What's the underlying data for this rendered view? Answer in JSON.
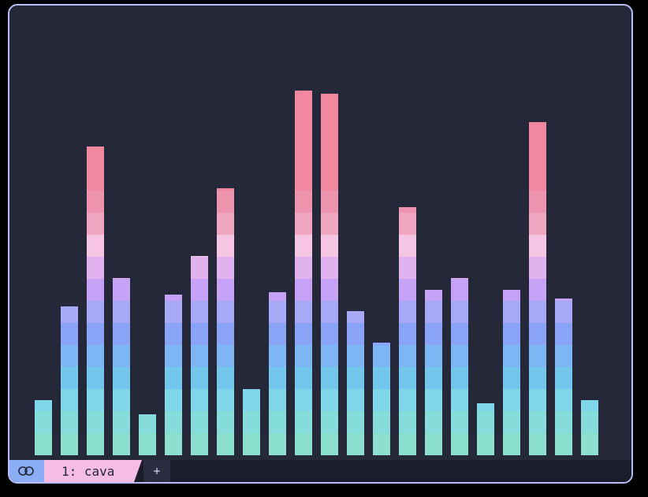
{
  "app": {
    "name": "cava"
  },
  "statusbar": {
    "icon": "toggle-icon",
    "tab_label": "1: cava",
    "new_tab_label": "+"
  },
  "colors": {
    "background": "#242839",
    "border": "#b7bdf8",
    "statusbar_bg": "#1b1d2a",
    "icon_segment": "#8aadf4",
    "tab_segment": "#f5bde6",
    "gradient_bottom_to_top": [
      "#8bdfcf",
      "#86dcdb",
      "#7fd6e8",
      "#74c7ec",
      "#7eb6f5",
      "#89a3f7",
      "#a7a9f6",
      "#c6a2f6",
      "#e2b2ee",
      "#f6c5e4",
      "#f0a6c0",
      "#ee94ae",
      "#f1889f"
    ]
  },
  "visualizer": {
    "bar_levels": [
      0.123,
      0.331,
      0.687,
      0.394,
      0.091,
      0.357,
      0.443,
      0.593,
      0.147,
      0.362,
      0.81,
      0.803,
      0.32,
      0.251,
      0.552,
      0.368,
      0.394,
      0.116,
      0.368,
      0.741,
      0.349,
      0.123
    ]
  }
}
